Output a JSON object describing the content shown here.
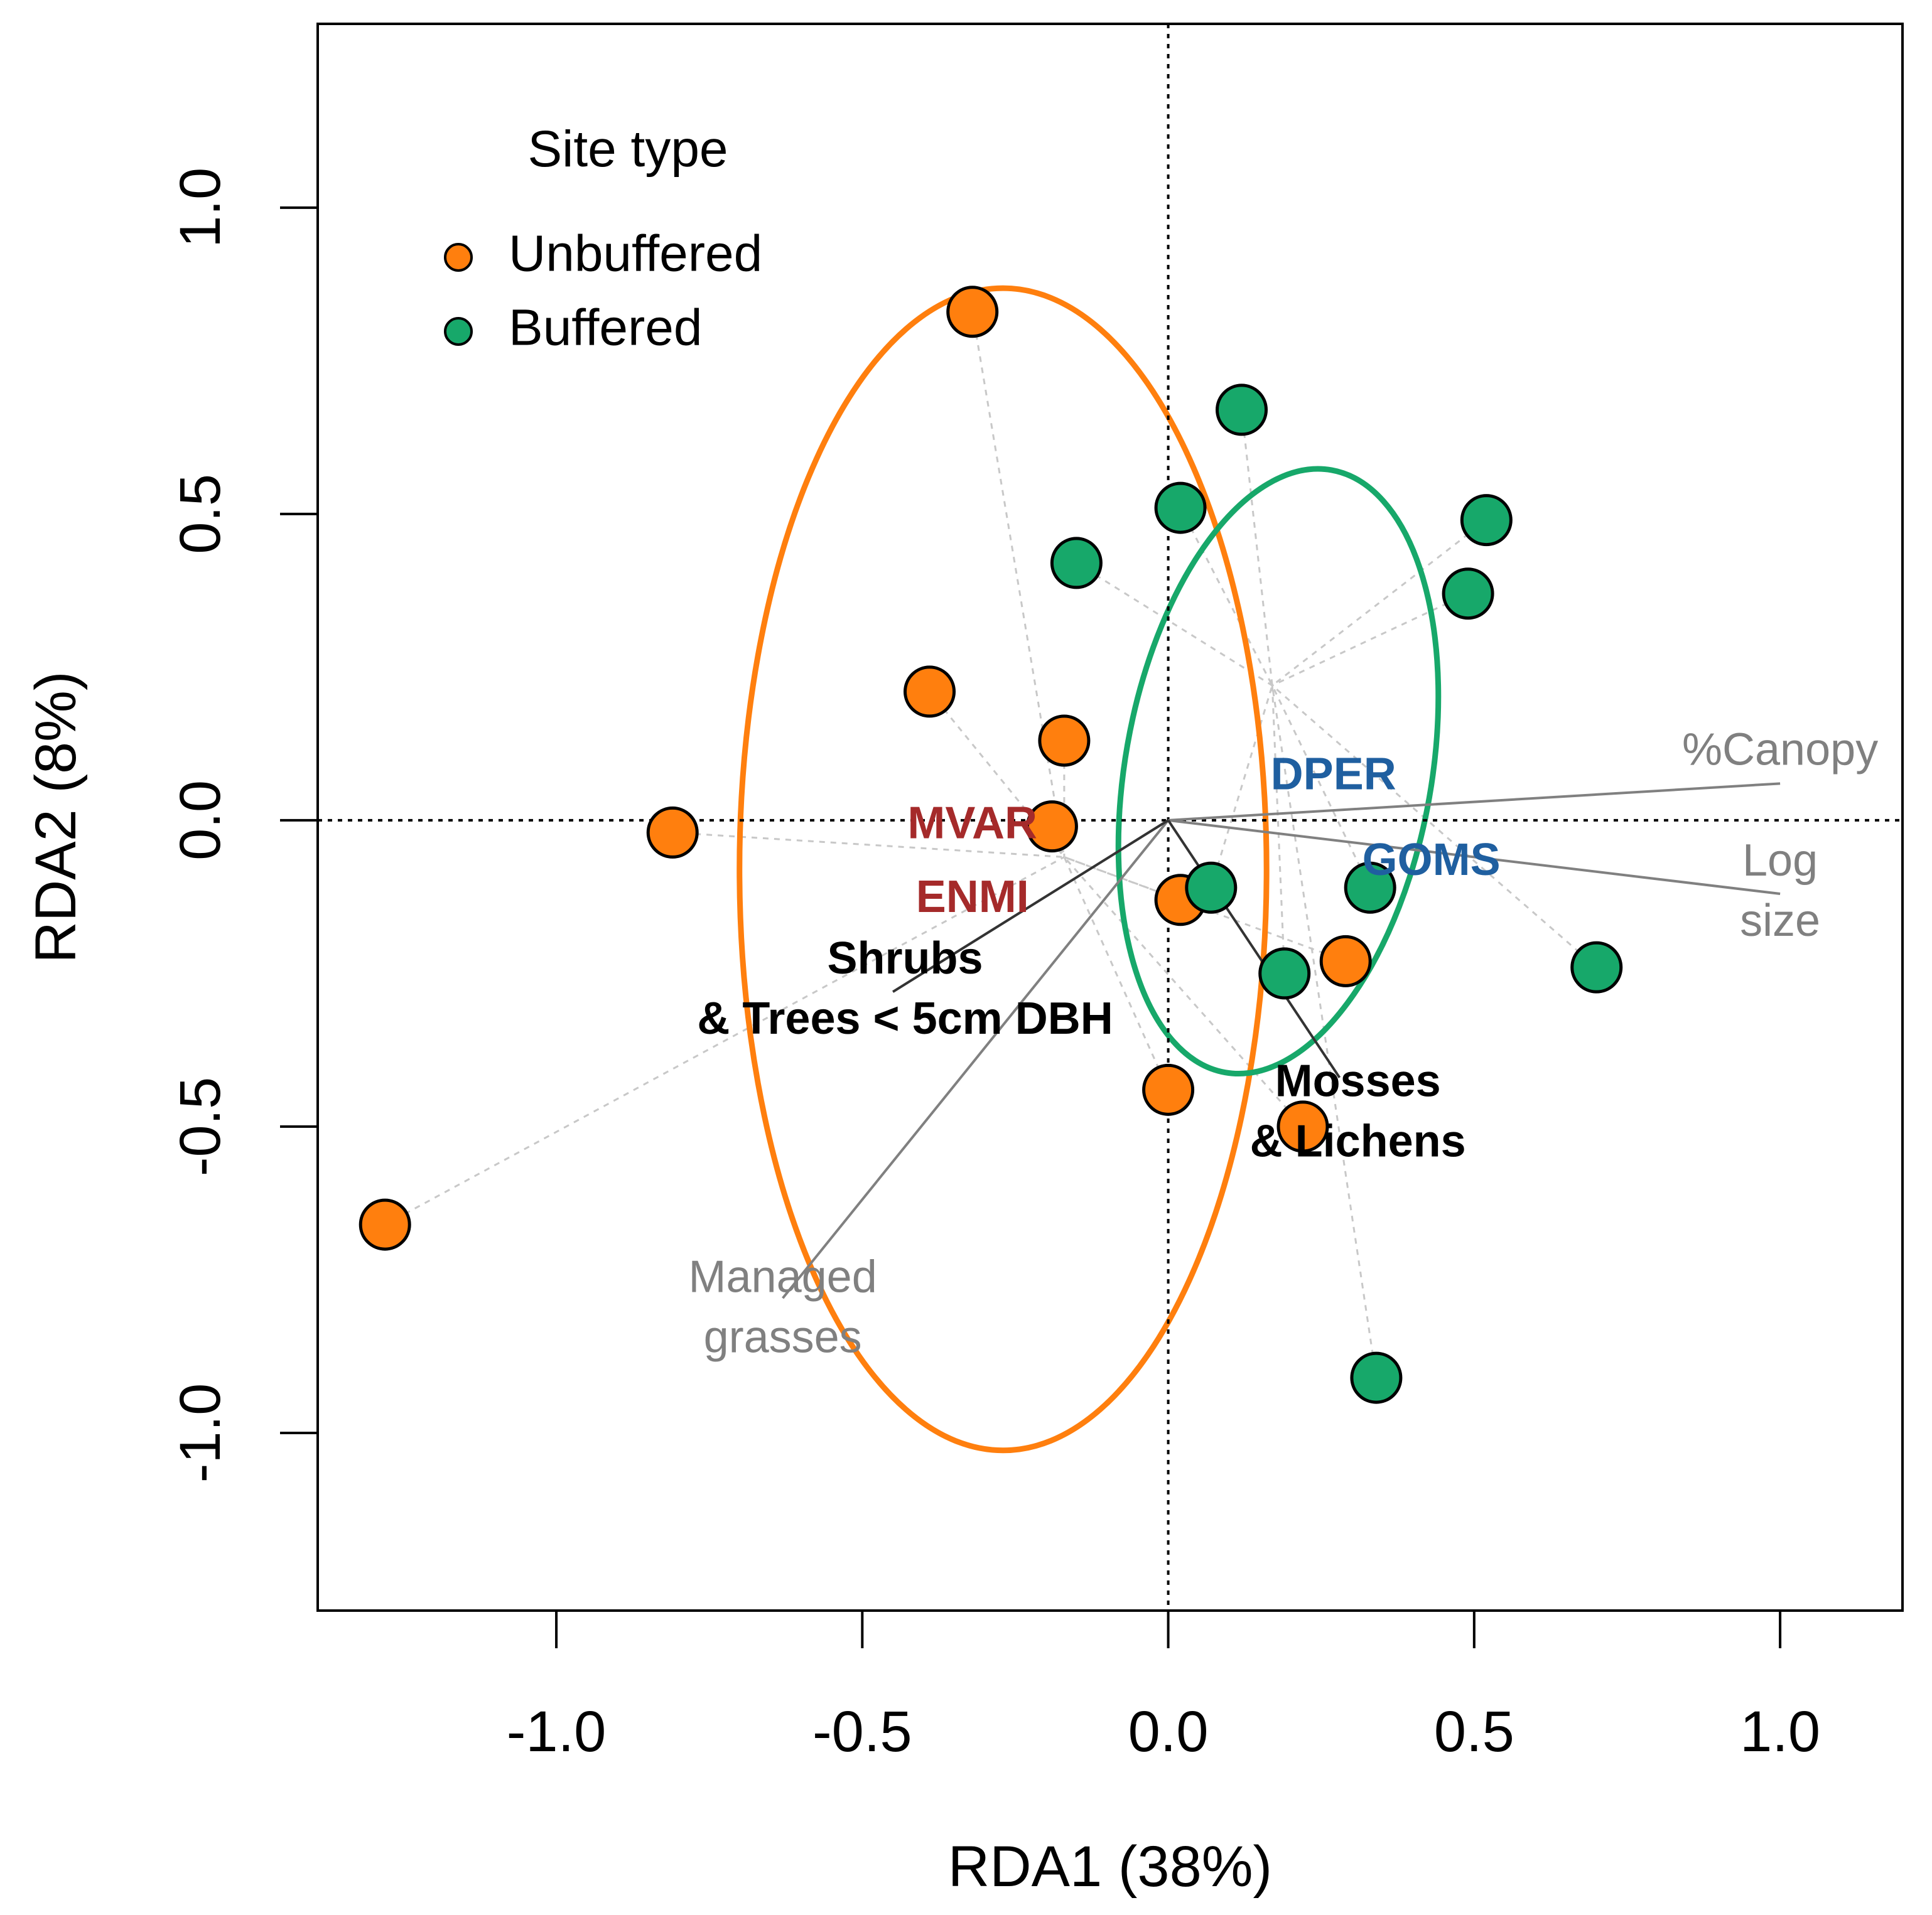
{
  "chart_data": {
    "type": "scatter",
    "title": "",
    "xlabel": "RDA1 (38%)",
    "ylabel": "RDA2 (8%)",
    "xlim": [
      -1.39,
      1.2
    ],
    "ylim": [
      -1.29,
      1.3
    ],
    "x_ticks": [
      -1.0,
      -0.5,
      0.0,
      0.5,
      1.0
    ],
    "x_tick_labels": [
      "-1.0",
      "-0.5",
      "0.0",
      "0.5",
      "1.0"
    ],
    "y_ticks": [
      -1.0,
      -0.5,
      0.0,
      0.5,
      1.0
    ],
    "y_tick_labels": [
      "-1.0",
      "-0.5",
      "0.0",
      "0.5",
      "1.0"
    ],
    "grid": false,
    "reference_lines": {
      "x": 0,
      "y": 0,
      "style": "dotted"
    },
    "legend": {
      "title": "Site type",
      "position": "top-left",
      "entries": [
        {
          "label": "Unbuffered",
          "color": "#ff7f0e"
        },
        {
          "label": "Buffered",
          "color": "#17a86a"
        }
      ]
    },
    "series": [
      {
        "name": "Unbuffered",
        "color": "#ff7f0e",
        "points": [
          {
            "x": -0.32,
            "y": 0.83
          },
          {
            "x": -0.39,
            "y": 0.21
          },
          {
            "x": -0.17,
            "y": 0.13
          },
          {
            "x": -0.81,
            "y": -0.02
          },
          {
            "x": -0.19,
            "y": -0.01
          },
          {
            "x": 0.02,
            "y": -0.13
          },
          {
            "x": 0.29,
            "y": -0.23
          },
          {
            "x": 0.0,
            "y": -0.44
          },
          {
            "x": 0.22,
            "y": -0.5
          },
          {
            "x": -1.28,
            "y": -0.66
          }
        ],
        "centroid": {
          "x": -0.17,
          "y": -0.06
        },
        "ellipse": {
          "cx": -0.27,
          "cy": -0.08,
          "rx": 0.95,
          "ry": 0.43,
          "angle": -90
        }
      },
      {
        "name": "Buffered",
        "color": "#17a86a",
        "points": [
          {
            "x": 0.12,
            "y": 0.67
          },
          {
            "x": 0.02,
            "y": 0.51
          },
          {
            "x": 0.52,
            "y": 0.49
          },
          {
            "x": -0.15,
            "y": 0.42
          },
          {
            "x": 0.49,
            "y": 0.37
          },
          {
            "x": 0.07,
            "y": -0.11
          },
          {
            "x": 0.33,
            "y": -0.11
          },
          {
            "x": 0.19,
            "y": -0.25
          },
          {
            "x": 0.7,
            "y": -0.24
          },
          {
            "x": 0.34,
            "y": -0.91
          }
        ],
        "centroid": {
          "x": 0.17,
          "y": 0.22
        },
        "ellipse": {
          "cx": 0.18,
          "cy": 0.08,
          "rx": 0.5,
          "ry": 0.25,
          "angle": -80
        }
      }
    ],
    "vectors": [
      {
        "label_lines": [
          "%Canopy"
        ],
        "x": 1.0,
        "y": 0.06,
        "color": "#808080",
        "label_color": "#808080",
        "bold": false,
        "label_x": 1.0,
        "label_y": 0.11
      },
      {
        "label_lines": [
          "Log",
          "size"
        ],
        "x": 1.0,
        "y": -0.12,
        "color": "#808080",
        "label_color": "#808080",
        "bold": false,
        "label_x": 1.0,
        "label_y": -0.12
      },
      {
        "label_lines": [
          "Managed",
          "grasses"
        ],
        "x": -0.63,
        "y": -0.78,
        "color": "#808080",
        "label_color": "#808080",
        "bold": false,
        "label_x": -0.63,
        "label_y": -0.8
      },
      {
        "label_lines": [
          "Shrubs",
          "& Trees < 5cm DBH"
        ],
        "x": -0.45,
        "y": -0.28,
        "color": "#333333",
        "label_color": "#000000",
        "bold": true,
        "label_x": -0.43,
        "label_y": -0.28
      },
      {
        "label_lines": [
          "Mosses",
          "& Lichens"
        ],
        "x": 0.28,
        "y": -0.42,
        "color": "#333333",
        "label_color": "#000000",
        "bold": true,
        "label_x": 0.31,
        "label_y": -0.48
      }
    ],
    "species": [
      {
        "label": "MVAR",
        "x": -0.32,
        "y": -0.01,
        "color": "#a52a2a"
      },
      {
        "label": "ENMI",
        "x": -0.32,
        "y": -0.13,
        "color": "#a52a2a"
      },
      {
        "label": "DPER",
        "x": 0.27,
        "y": 0.07,
        "color": "#1f5fa0"
      },
      {
        "label": "GOMS",
        "x": 0.43,
        "y": -0.07,
        "color": "#1f5fa0"
      }
    ]
  }
}
